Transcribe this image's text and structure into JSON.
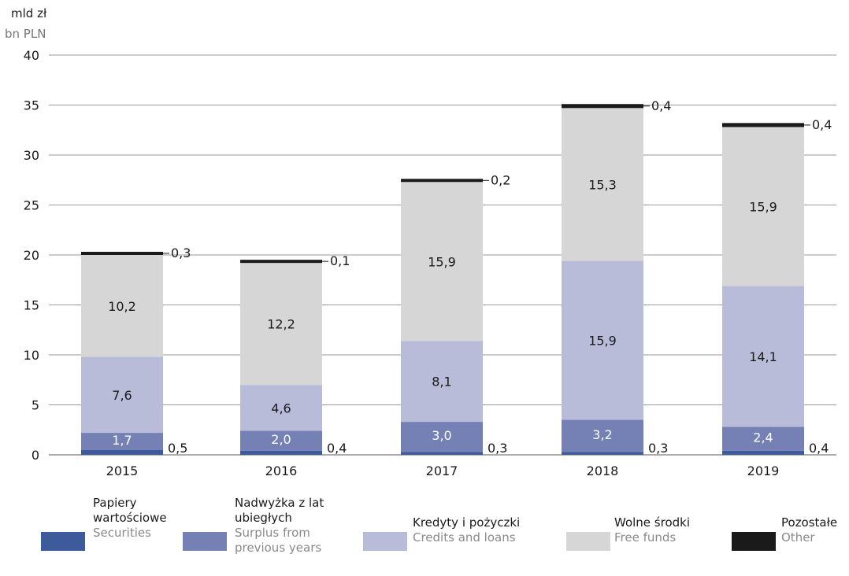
{
  "unit": {
    "pl": "mld zł",
    "en": "bn PLN"
  },
  "colors": {
    "securities": "#3d5a9a",
    "surplus": "#7581b5",
    "credits": "#b8bcd9",
    "free_funds": "#d6d6d6",
    "other": "#1a1a1a"
  },
  "legend": [
    {
      "pl_lines": [
        "Papiery",
        "wartościowe"
      ],
      "en_lines": [
        "Securities"
      ],
      "color_key": "securities"
    },
    {
      "pl_lines": [
        "Nadwyżka z lat",
        "ubiegłych"
      ],
      "en_lines": [
        "Surplus from",
        "previous years"
      ],
      "color_key": "surplus"
    },
    {
      "pl_lines": [
        "Kredyty i pożyczki"
      ],
      "en_lines": [
        "Credits and loans"
      ],
      "color_key": "credits"
    },
    {
      "pl_lines": [
        "Wolne środki"
      ],
      "en_lines": [
        "Free funds"
      ],
      "color_key": "free_funds"
    },
    {
      "pl_lines": [
        "Pozostałe"
      ],
      "en_lines": [
        "Other"
      ],
      "color_key": "other"
    }
  ],
  "chart_data": {
    "type": "bar",
    "stacked": true,
    "title": "",
    "xlabel": "",
    "ylabel": "mld zł / bn PLN",
    "ylim": [
      0,
      40
    ],
    "yticks": [
      0,
      5,
      10,
      15,
      20,
      25,
      30,
      35,
      40
    ],
    "grid": true,
    "legend_position": "bottom",
    "categories": [
      "2015",
      "2016",
      "2017",
      "2018",
      "2019"
    ],
    "series": [
      {
        "name": "Papiery wartościowe / Securities",
        "key": "securities",
        "values": [
          0.5,
          0.4,
          0.3,
          0.3,
          0.4
        ],
        "labels": [
          "0,5",
          "0,4",
          "0,3",
          "0,3",
          "0,4"
        ]
      },
      {
        "name": "Nadwyżka z lat ubiegłych / Surplus from previous years",
        "key": "surplus",
        "values": [
          1.7,
          2.0,
          3.0,
          3.2,
          2.4
        ],
        "labels": [
          "1,7",
          "2,0",
          "3,0",
          "3,2",
          "2,4"
        ]
      },
      {
        "name": "Kredyty i pożyczki / Credits and loans",
        "key": "credits",
        "values": [
          7.6,
          4.6,
          8.1,
          15.9,
          14.1
        ],
        "labels": [
          "7,6",
          "4,6",
          "8,1",
          "15,9",
          "14,1"
        ]
      },
      {
        "name": "Wolne środki / Free funds",
        "key": "free_funds",
        "values": [
          10.2,
          12.2,
          15.9,
          15.3,
          15.9
        ],
        "labels": [
          "10,2",
          "12,2",
          "15,9",
          "15,3",
          "15,9"
        ]
      },
      {
        "name": "Pozostałe / Other",
        "key": "other",
        "values": [
          0.3,
          0.1,
          0.2,
          0.4,
          0.4
        ],
        "labels": [
          "0,3",
          "0,1",
          "0,2",
          "0,4",
          "0,4"
        ]
      }
    ]
  }
}
